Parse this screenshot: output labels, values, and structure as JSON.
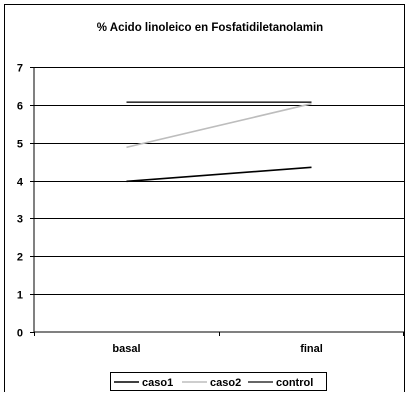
{
  "chart_data": {
    "type": "line",
    "title": "% Acido linoleico en Fosfatidiletanolamin",
    "xlabel": "",
    "ylabel": "",
    "categories": [
      "basal",
      "final"
    ],
    "ylim": [
      0,
      7
    ],
    "yticks": [
      0,
      1,
      2,
      3,
      4,
      5,
      6,
      7
    ],
    "grid": true,
    "legend_position": "bottom",
    "series": [
      {
        "name": "caso1",
        "values": [
          3.98,
          4.35
        ],
        "color": "#000000"
      },
      {
        "name": "caso2",
        "values": [
          4.88,
          6.03
        ],
        "color": "#bdbdbd"
      },
      {
        "name": "control",
        "values": [
          6.07,
          6.07
        ],
        "color": "#333333"
      }
    ]
  }
}
